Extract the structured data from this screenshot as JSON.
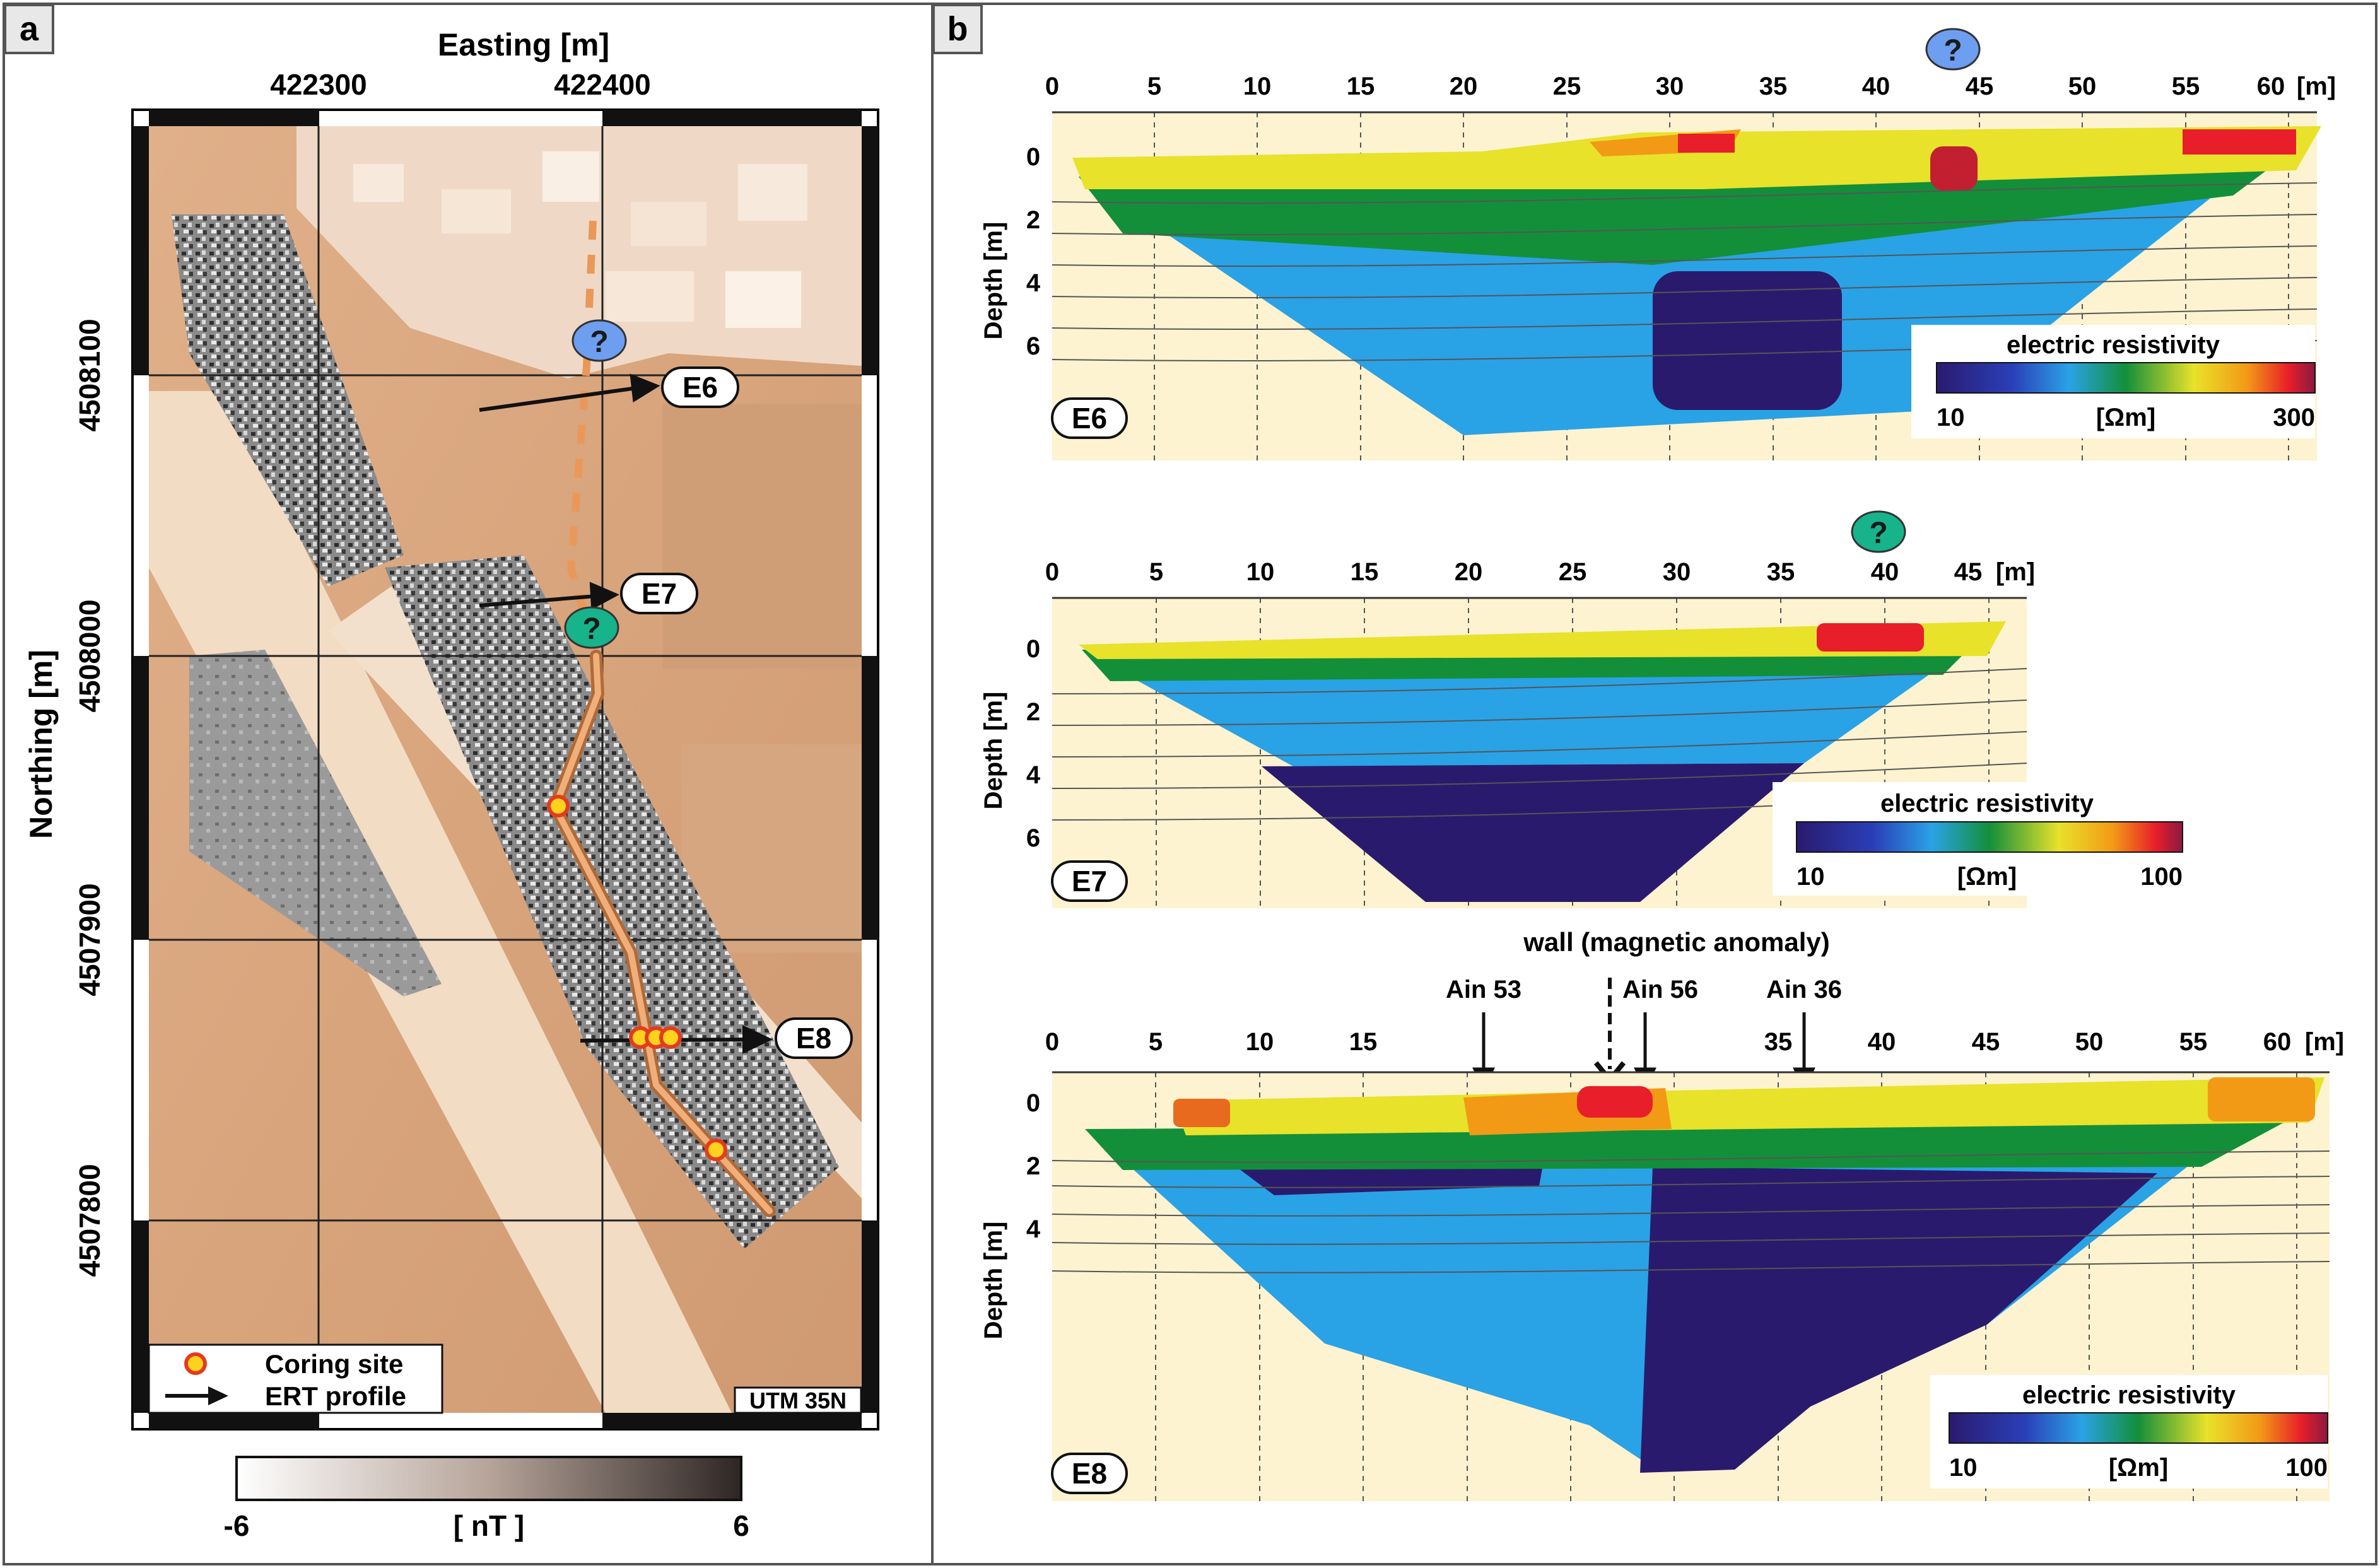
{
  "panel_a": {
    "label": "a",
    "easting_title": "Easting [m]",
    "easting_ticks": [
      "422300",
      "422400"
    ],
    "northing_title": "Northing [m]",
    "northing_ticks": [
      "4508100",
      "4508000",
      "4507900",
      "4507800"
    ],
    "profile_labels": [
      "E6",
      "E7",
      "E8"
    ],
    "question_mark": "?",
    "legend": {
      "coring": "Coring site",
      "ert": "ERT profile"
    },
    "utm": "UTM 35N",
    "scale": {
      "min": "-6",
      "max": "6",
      "unit": "[ nT ]"
    }
  },
  "panel_b": {
    "label": "b",
    "profiles": [
      {
        "id": "E6",
        "x_ticks": [
          "0",
          "5",
          "10",
          "15",
          "20",
          "25",
          "30",
          "35",
          "40",
          "45",
          "50",
          "55",
          "60"
        ],
        "x_unit": "[m]",
        "y_title": "Depth [m]",
        "y_ticks": [
          "0",
          "2",
          "4",
          "6"
        ],
        "legend_title": "electric resistivity",
        "legend_unit": "[Ωm]",
        "legend_min": "10",
        "legend_max": "300",
        "question_mark": "?"
      },
      {
        "id": "E7",
        "x_ticks": [
          "0",
          "5",
          "10",
          "15",
          "20",
          "25",
          "30",
          "35",
          "40",
          "45"
        ],
        "x_unit": "[m]",
        "y_title": "Depth [m]",
        "y_ticks": [
          "0",
          "2",
          "4",
          "6"
        ],
        "legend_title": "electric resistivity",
        "legend_unit": "[Ωm]",
        "legend_min": "10",
        "legend_max": "100",
        "question_mark": "?"
      },
      {
        "id": "E8",
        "x_ticks": [
          "0",
          "5",
          "10",
          "15",
          "35",
          "40",
          "45",
          "50",
          "55",
          "60"
        ],
        "x_unit": "[m]",
        "y_title": "Depth [m]",
        "y_ticks": [
          "0",
          "2",
          "4"
        ],
        "legend_title": "electric resistivity",
        "legend_unit": "[Ωm]",
        "legend_min": "10",
        "legend_max": "100",
        "wall_label": "wall (magnetic anomaly)",
        "core_labels": [
          "Ain 53",
          "Ain 56",
          "Ain 36"
        ]
      }
    ]
  },
  "colors": {
    "blue_marker": "#6d9ef0",
    "green_marker": "#17b38a",
    "ground": "#fdf3d0",
    "orange_line": "#e9985a"
  }
}
